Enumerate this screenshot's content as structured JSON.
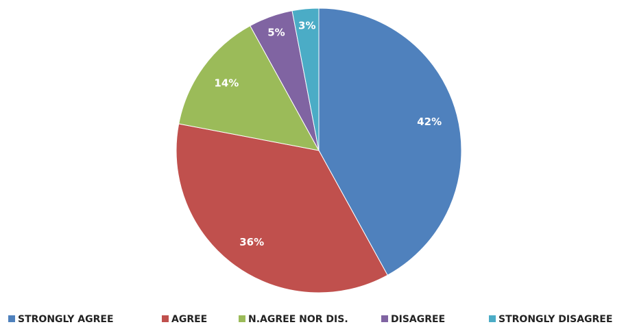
{
  "chart_data": {
    "type": "pie",
    "categories": [
      "STRONGLY AGREE",
      "AGREE",
      "N.AGREE NOR DIS.",
      "DISAGREE",
      "STRONGLY DISAGREE"
    ],
    "values": [
      42,
      36,
      14,
      5,
      3
    ],
    "value_labels": [
      "42%",
      "36%",
      "14%",
      "5%",
      "3%"
    ],
    "colors": [
      "#4f81bd",
      "#c0504d",
      "#9bbb59",
      "#8064a2",
      "#4bacc6"
    ],
    "legend": "bottom"
  }
}
